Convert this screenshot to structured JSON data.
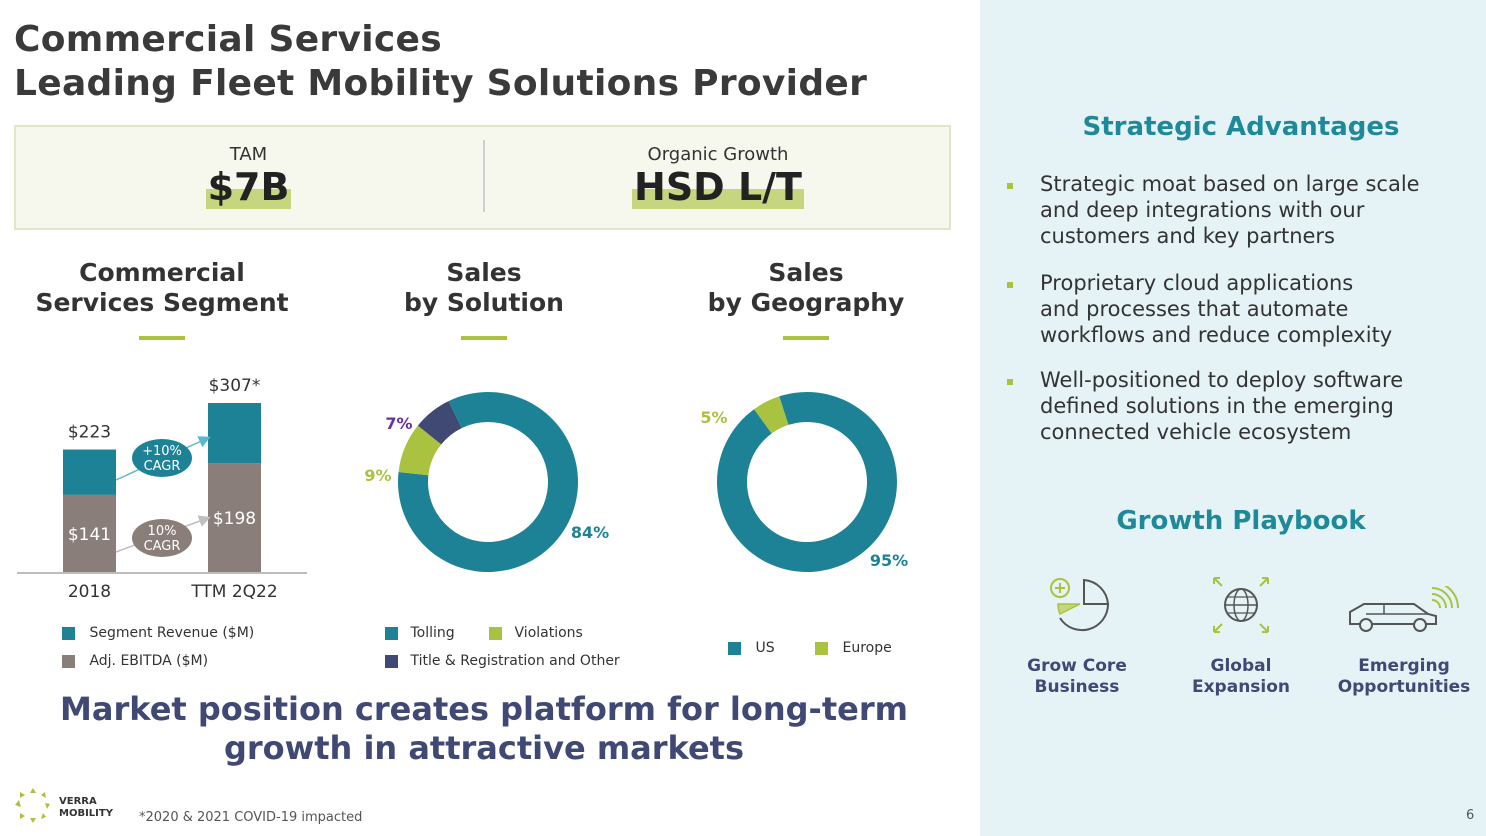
{
  "title": {
    "line1": "Commercial Services",
    "line2": "Leading Fleet Mobility Solutions Provider"
  },
  "kpis": [
    {
      "label": "TAM",
      "value": "$7B"
    },
    {
      "label": "Organic Growth",
      "value": "HSD L/T"
    }
  ],
  "sections": {
    "segment": {
      "line1": "Commercial",
      "line2": "Services Segment"
    },
    "solution": {
      "line1": "Sales",
      "line2": "by Solution"
    },
    "geography": {
      "line1": "Sales",
      "line2": "by Geography"
    }
  },
  "colors": {
    "teal": "#1e8296",
    "taupe": "#8a7e7a",
    "lime": "#a9c23f",
    "navy": "#404874",
    "purple": "#6b2fa0"
  },
  "chart_data": [
    {
      "type": "bar",
      "title": "Commercial Services Segment",
      "categories": [
        "2018",
        "TTM 2Q22"
      ],
      "series": [
        {
          "name": "Segment Revenue ($M)",
          "values": [
            223,
            307
          ],
          "labels": [
            "$223",
            "$307*"
          ]
        },
        {
          "name": "Adj. EBITDA ($M)",
          "values": [
            141,
            198
          ],
          "labels": [
            "$141",
            "$198"
          ]
        }
      ],
      "annotations": [
        {
          "line1": "+10%",
          "line2": "CAGR"
        },
        {
          "line1": "10%",
          "line2": "CAGR"
        }
      ]
    },
    {
      "type": "pie",
      "title": "Sales by Solution",
      "slices": [
        {
          "name": "Tolling",
          "value": 84,
          "label": "84%"
        },
        {
          "name": "Violations",
          "value": 9,
          "label": "9%"
        },
        {
          "name": "Title & Registration and Other",
          "value": 7,
          "label": "7%"
        }
      ]
    },
    {
      "type": "pie",
      "title": "Sales by Geography",
      "slices": [
        {
          "name": "US",
          "value": 95,
          "label": "95%"
        },
        {
          "name": "Europe",
          "value": 5,
          "label": "5%"
        }
      ]
    }
  ],
  "tagline": {
    "line1": "Market position creates platform for long-term",
    "line2": "growth in attractive markets"
  },
  "strategic": {
    "heading": "Strategic Advantages",
    "bullets": [
      [
        "Strategic moat based on large scale",
        "and deep integrations with our",
        "customers and key partners"
      ],
      [
        "Proprietary cloud applications",
        "and processes that automate",
        "workflows and reduce complexity"
      ],
      [
        "Well-positioned to deploy software",
        "defined solutions in the emerging",
        "connected vehicle ecosystem"
      ]
    ]
  },
  "playbook": {
    "heading": "Growth Playbook",
    "items": [
      {
        "icon": "grow-core-icon",
        "line1": "Grow Core",
        "line2": "Business"
      },
      {
        "icon": "globe-icon",
        "line1": "Global",
        "line2": "Expansion"
      },
      {
        "icon": "connected-car-icon",
        "line1": "Emerging",
        "line2": "Opportunities"
      }
    ]
  },
  "footnote": "*2020 & 2021 COVID-19 impacted",
  "logo": {
    "line1": "VERRA",
    "line2": "MOBILITY"
  },
  "page_number": "6"
}
